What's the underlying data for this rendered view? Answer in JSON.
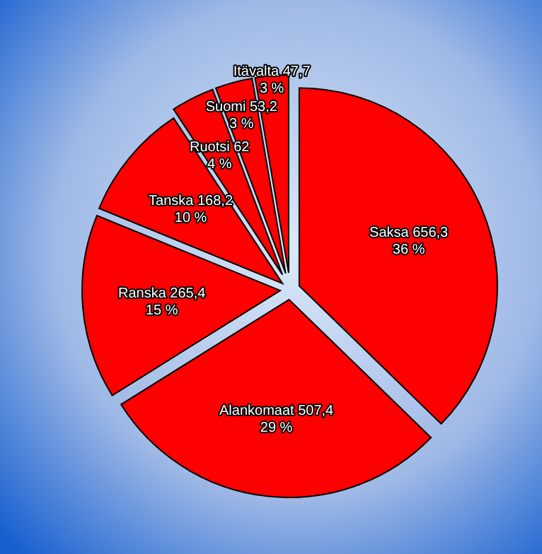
{
  "chart_data": {
    "type": "pie",
    "categories": [
      "Saksa",
      "Alankomaat",
      "Ranska",
      "Tanska",
      "Ruotsi",
      "Suomi",
      "Itävalta"
    ],
    "values": [
      656.3,
      507.4,
      265.4,
      168.2,
      62,
      53.2,
      47.7
    ],
    "colors": [
      "#ff0000",
      "#ff0000",
      "#ff0000",
      "#ff0000",
      "#ff0000",
      "#ff0000",
      "#ff0000"
    ],
    "value_labels": [
      "656,3\n36 %",
      "507,4\n29 %",
      "265,4\n15 %",
      "168,2\n10 %",
      "62\n4 %",
      "53,2\n3 %",
      "47,7\n3 %"
    ]
  }
}
